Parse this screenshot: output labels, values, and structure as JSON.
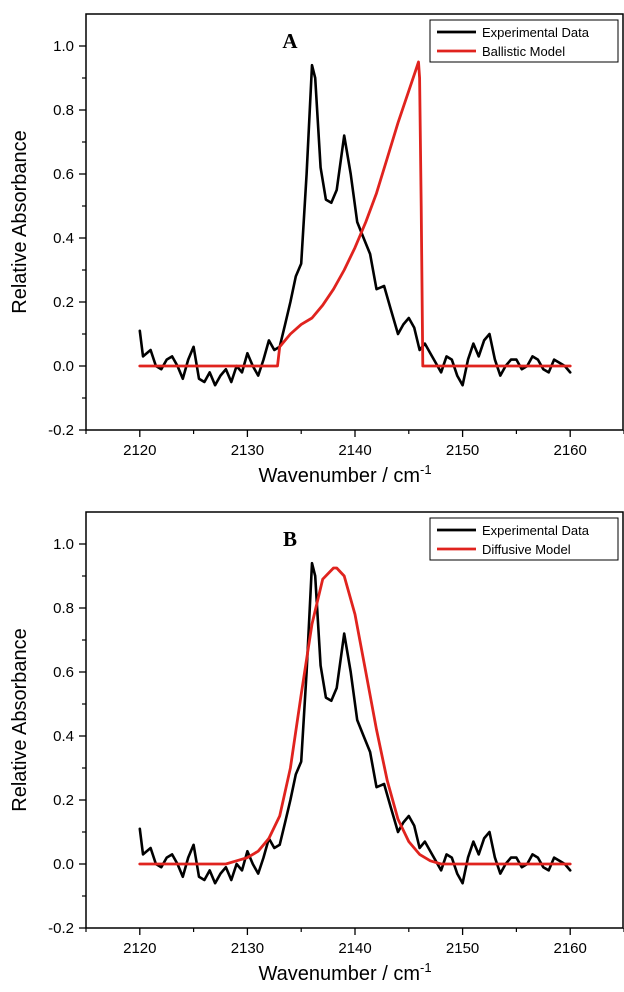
{
  "chart_data": [
    {
      "type": "line",
      "panel_label": "A",
      "xlabel": "Wavenumber / cm",
      "xlabel_sup": "-1",
      "ylabel": "Relative Absorbance",
      "xlim": [
        2115,
        2165
      ],
      "ylim": [
        -0.2,
        1.1
      ],
      "xticks": [
        2120,
        2130,
        2140,
        2150,
        2160
      ],
      "yticks": [
        -0.2,
        0.0,
        0.2,
        0.4,
        0.6,
        0.8,
        1.0
      ],
      "grid": false,
      "legend_position": "top-right",
      "series": [
        {
          "name": "Experimental Data",
          "color": "#000000",
          "x": [
            2120,
            2120.3,
            2121,
            2121.5,
            2122,
            2122.5,
            2123,
            2123.5,
            2124,
            2124.5,
            2125,
            2125.5,
            2126,
            2126.5,
            2127,
            2127.5,
            2128,
            2128.5,
            2129,
            2129.5,
            2130,
            2130.5,
            2131,
            2131.5,
            2132,
            2132.5,
            2133,
            2133.5,
            2134,
            2134.5,
            2135,
            2135.5,
            2136,
            2136.3,
            2136.8,
            2137.3,
            2137.8,
            2138.3,
            2139,
            2139.6,
            2140.2,
            2140.8,
            2141.4,
            2142,
            2142.7,
            2143.3,
            2144,
            2144.5,
            2145,
            2145.5,
            2146,
            2146.5,
            2147,
            2147.5,
            2148,
            2148.5,
            2149,
            2149.5,
            2150,
            2150.5,
            2151,
            2151.5,
            2152,
            2152.5,
            2153,
            2153.5,
            2154,
            2154.5,
            2155,
            2155.5,
            2156,
            2156.5,
            2157,
            2157.5,
            2158,
            2158.5,
            2159,
            2159.5,
            2160
          ],
          "y": [
            0.11,
            0.03,
            0.05,
            0.0,
            -0.01,
            0.02,
            0.03,
            0.0,
            -0.04,
            0.02,
            0.06,
            -0.04,
            -0.05,
            -0.02,
            -0.06,
            -0.03,
            -0.01,
            -0.05,
            0.0,
            -0.02,
            0.04,
            0.0,
            -0.03,
            0.02,
            0.08,
            0.05,
            0.06,
            0.13,
            0.2,
            0.28,
            0.32,
            0.6,
            0.94,
            0.9,
            0.62,
            0.52,
            0.51,
            0.55,
            0.72,
            0.6,
            0.45,
            0.4,
            0.35,
            0.24,
            0.25,
            0.18,
            0.1,
            0.13,
            0.15,
            0.12,
            0.05,
            0.07,
            0.04,
            0.01,
            -0.02,
            0.03,
            0.02,
            -0.03,
            -0.06,
            0.02,
            0.07,
            0.03,
            0.08,
            0.1,
            0.02,
            -0.03,
            0.0,
            0.02,
            0.02,
            -0.01,
            0.0,
            0.03,
            0.02,
            -0.01,
            -0.02,
            0.02,
            0.01,
            0.0,
            -0.02
          ]
        },
        {
          "name": "Ballistic Model",
          "color": "#e0231e",
          "x": [
            2120,
            2132.8,
            2133,
            2134,
            2135,
            2136,
            2137,
            2138,
            2139,
            2140,
            2141,
            2142,
            2143,
            2144,
            2145,
            2145.6,
            2145.9,
            2146,
            2146.15,
            2146.3,
            2160
          ],
          "y": [
            0.0,
            0.0,
            0.06,
            0.1,
            0.13,
            0.15,
            0.19,
            0.24,
            0.3,
            0.37,
            0.45,
            0.54,
            0.65,
            0.76,
            0.86,
            0.92,
            0.95,
            0.9,
            0.5,
            0.0,
            0.0
          ]
        }
      ]
    },
    {
      "type": "line",
      "panel_label": "B",
      "xlabel": "Wavenumber / cm",
      "xlabel_sup": "-1",
      "ylabel": "Relative Absorbance",
      "xlim": [
        2115,
        2165
      ],
      "ylim": [
        -0.2,
        1.1
      ],
      "xticks": [
        2120,
        2130,
        2140,
        2150,
        2160
      ],
      "yticks": [
        -0.2,
        0.0,
        0.2,
        0.4,
        0.6,
        0.8,
        1.0
      ],
      "grid": false,
      "legend_position": "top-right",
      "series": [
        {
          "name": "Experimental Data",
          "color": "#000000",
          "x": [
            2120,
            2120.3,
            2121,
            2121.5,
            2122,
            2122.5,
            2123,
            2123.5,
            2124,
            2124.5,
            2125,
            2125.5,
            2126,
            2126.5,
            2127,
            2127.5,
            2128,
            2128.5,
            2129,
            2129.5,
            2130,
            2130.5,
            2131,
            2131.5,
            2132,
            2132.5,
            2133,
            2133.5,
            2134,
            2134.5,
            2135,
            2135.5,
            2136,
            2136.3,
            2136.8,
            2137.3,
            2137.8,
            2138.3,
            2139,
            2139.6,
            2140.2,
            2140.8,
            2141.4,
            2142,
            2142.7,
            2143.3,
            2144,
            2144.5,
            2145,
            2145.5,
            2146,
            2146.5,
            2147,
            2147.5,
            2148,
            2148.5,
            2149,
            2149.5,
            2150,
            2150.5,
            2151,
            2151.5,
            2152,
            2152.5,
            2153,
            2153.5,
            2154,
            2154.5,
            2155,
            2155.5,
            2156,
            2156.5,
            2157,
            2157.5,
            2158,
            2158.5,
            2159,
            2159.5,
            2160
          ],
          "y": [
            0.11,
            0.03,
            0.05,
            0.0,
            -0.01,
            0.02,
            0.03,
            0.0,
            -0.04,
            0.02,
            0.06,
            -0.04,
            -0.05,
            -0.02,
            -0.06,
            -0.03,
            -0.01,
            -0.05,
            0.0,
            -0.02,
            0.04,
            0.0,
            -0.03,
            0.02,
            0.08,
            0.05,
            0.06,
            0.13,
            0.2,
            0.28,
            0.32,
            0.6,
            0.94,
            0.9,
            0.62,
            0.52,
            0.51,
            0.55,
            0.72,
            0.6,
            0.45,
            0.4,
            0.35,
            0.24,
            0.25,
            0.18,
            0.1,
            0.13,
            0.15,
            0.12,
            0.05,
            0.07,
            0.04,
            0.01,
            -0.02,
            0.03,
            0.02,
            -0.03,
            -0.06,
            0.02,
            0.07,
            0.03,
            0.08,
            0.1,
            0.02,
            -0.03,
            0.0,
            0.02,
            0.02,
            -0.01,
            0.0,
            0.03,
            0.02,
            -0.01,
            -0.02,
            0.02,
            0.01,
            0.0,
            -0.02
          ]
        },
        {
          "name": "Diffusive Model",
          "color": "#e0231e",
          "x": [
            2120,
            2126,
            2128,
            2129,
            2130,
            2131,
            2132,
            2133,
            2134,
            2135,
            2136,
            2137,
            2138,
            2138.3,
            2139,
            2140,
            2141,
            2142,
            2143,
            2144,
            2145,
            2146,
            2147,
            2148,
            2150,
            2160
          ],
          "y": [
            0.0,
            0.0,
            0.0,
            0.01,
            0.02,
            0.04,
            0.08,
            0.15,
            0.3,
            0.53,
            0.75,
            0.89,
            0.925,
            0.925,
            0.9,
            0.78,
            0.6,
            0.42,
            0.26,
            0.14,
            0.07,
            0.03,
            0.01,
            0.0,
            0.0,
            0.0
          ]
        }
      ]
    }
  ]
}
